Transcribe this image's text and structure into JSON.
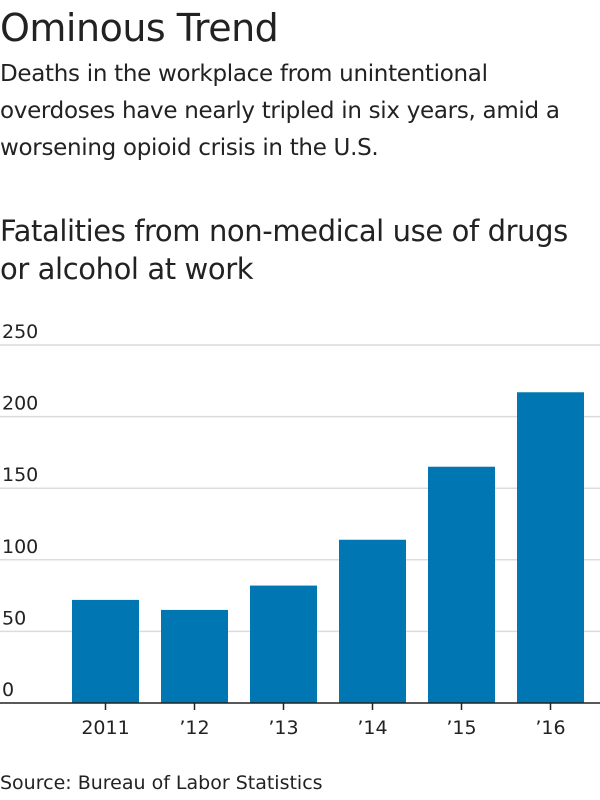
{
  "title": "Ominous Trend",
  "subtitle": "Deaths in the workplace from unintentional overdoses have nearly tripled in six years, amid a worsening opioid crisis in the U.S.",
  "source": "Source: Bureau of Labor Statistics",
  "chart_data": {
    "type": "bar",
    "title": "Fatalities from non-medical use of drugs or alcohol at work",
    "xlabel": "",
    "ylabel": "",
    "categories": [
      "2011",
      "’12",
      "’13",
      "’14",
      "’15",
      "’16"
    ],
    "values": [
      72,
      65,
      82,
      114,
      165,
      217
    ],
    "ylim": [
      0,
      250
    ],
    "yticks": [
      0,
      50,
      100,
      150,
      200,
      250
    ],
    "grid": true,
    "bar_color": "#0077b3",
    "gridline_color": "#dcdcdc",
    "axis_color": "#222222"
  }
}
